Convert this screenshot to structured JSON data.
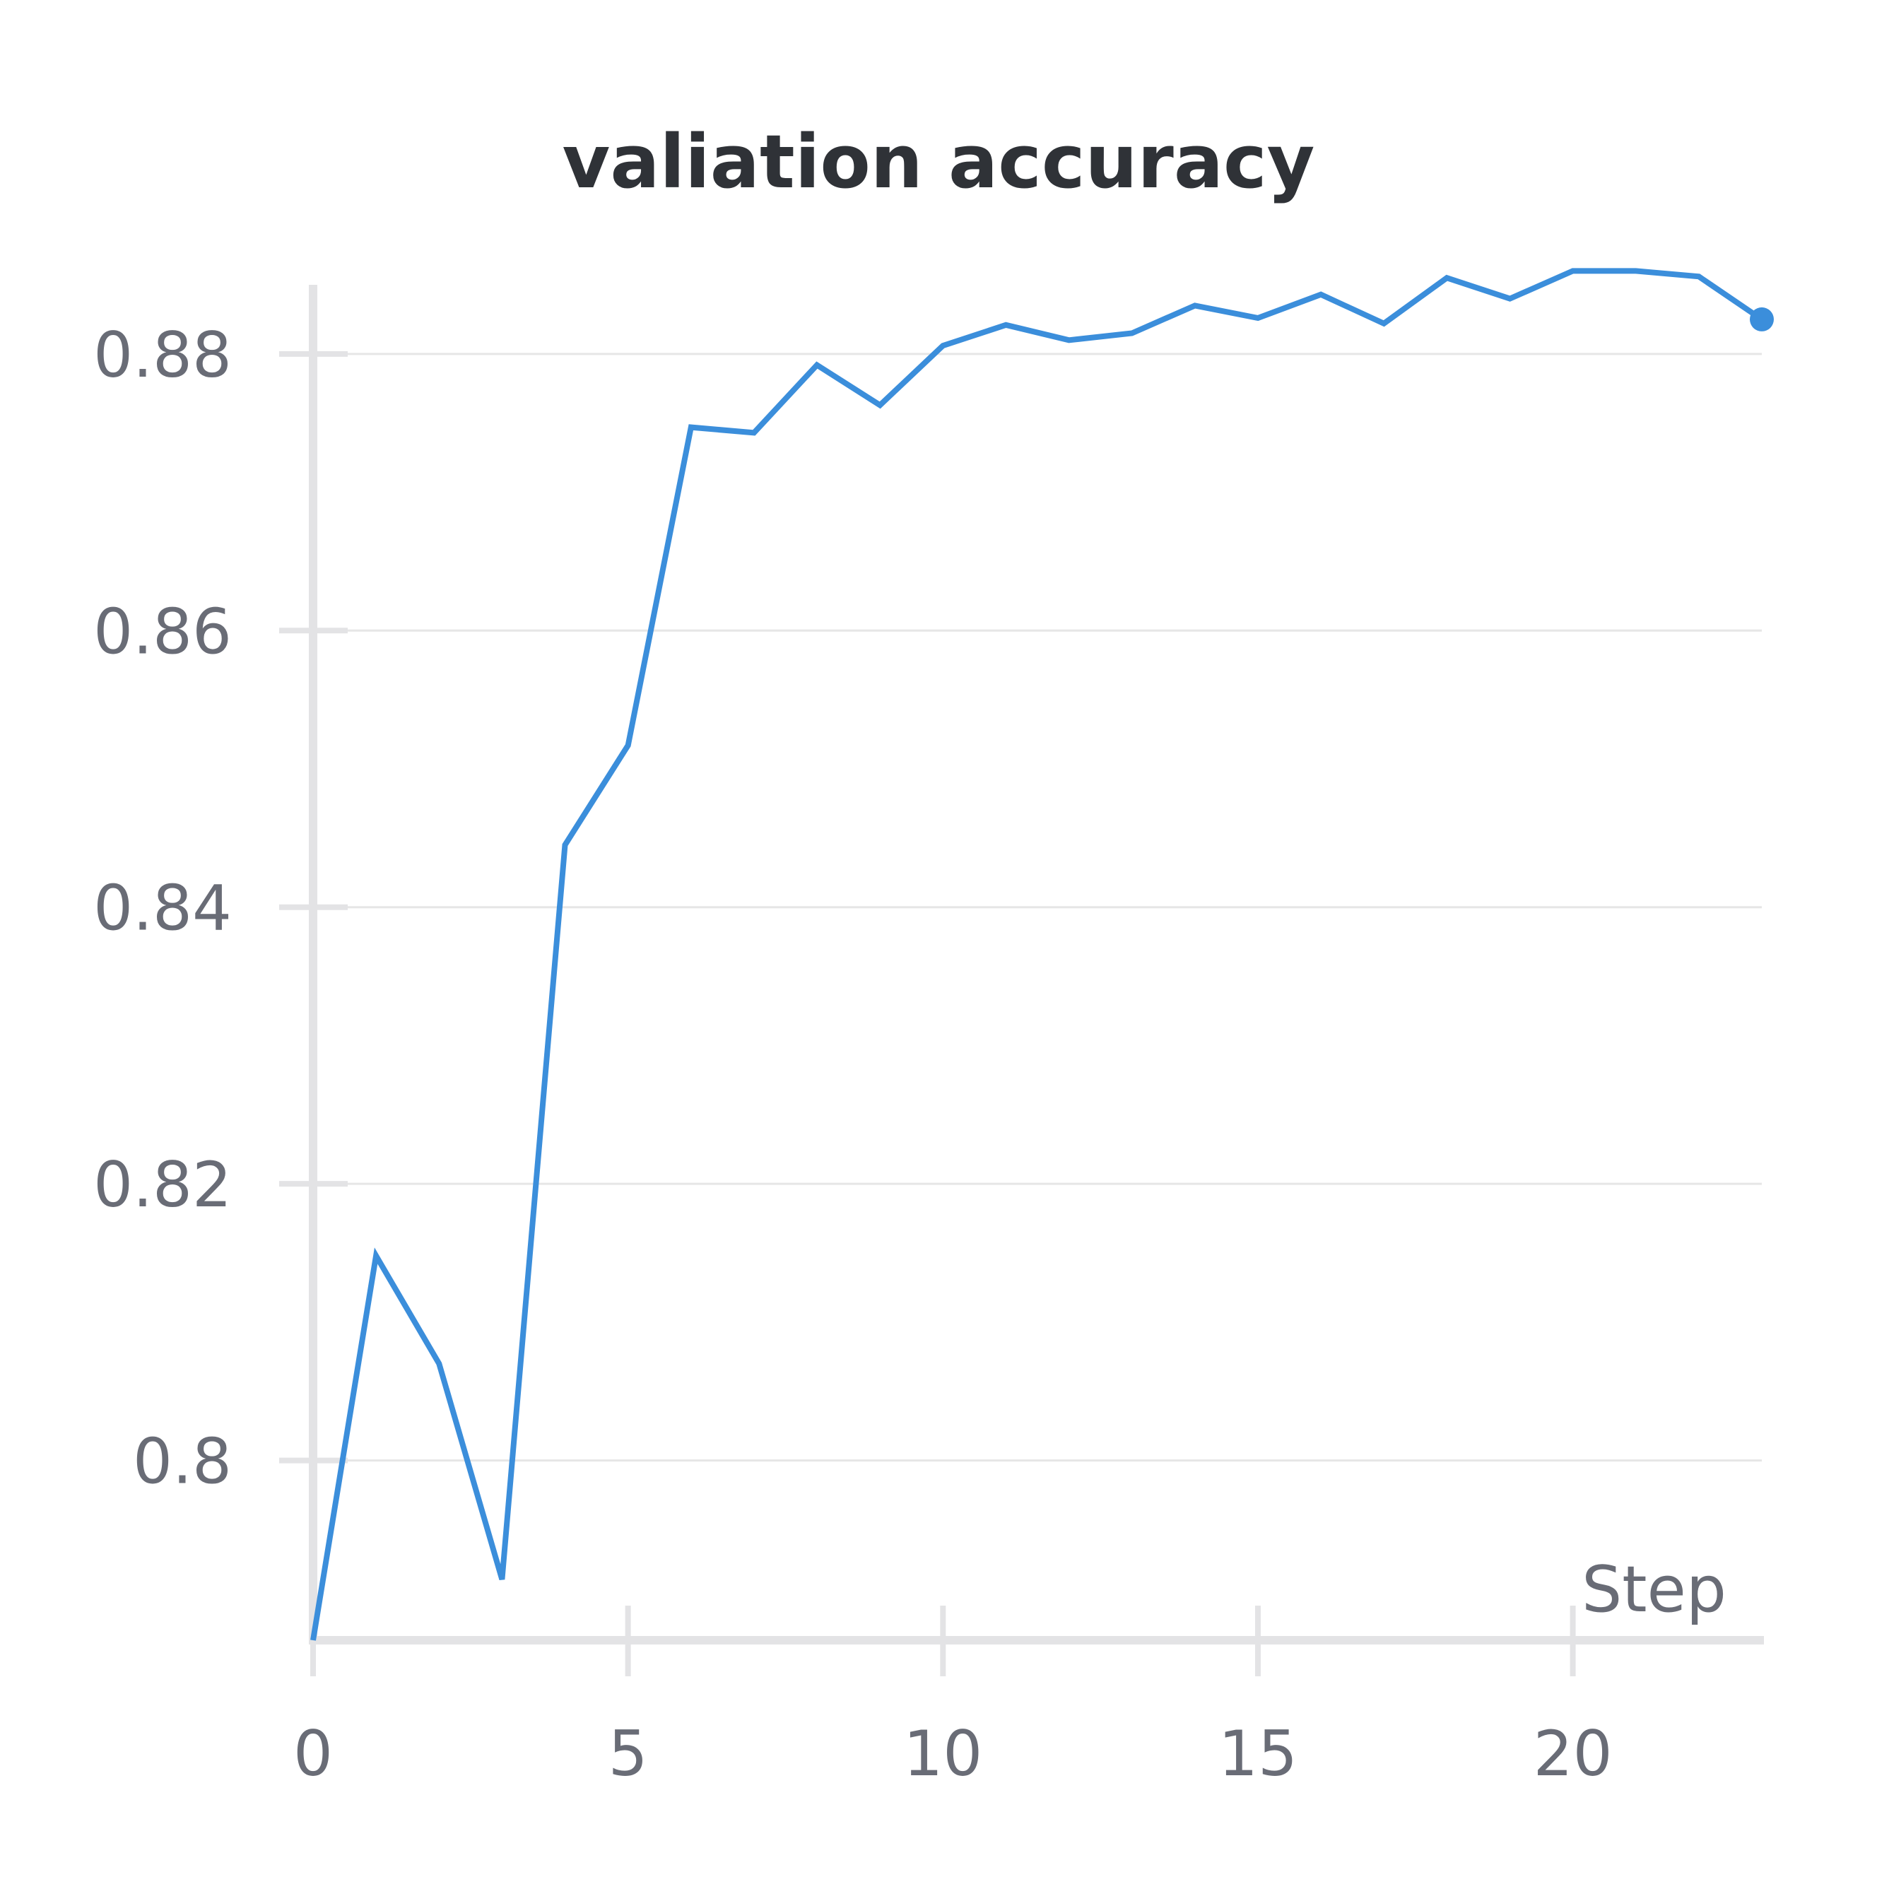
{
  "chart_data": {
    "type": "line",
    "title": "valiation accuracy",
    "xlabel": "Step",
    "ylabel": "",
    "xlim": [
      0,
      23
    ],
    "ylim": [
      0.787,
      0.885
    ],
    "x_ticks": [
      0,
      5,
      10,
      15,
      20
    ],
    "y_ticks": [
      0.8,
      0.82,
      0.84,
      0.86,
      0.88
    ],
    "y_tick_labels": [
      "0.8",
      "0.82",
      "0.84",
      "0.86",
      "0.88"
    ],
    "grid": true,
    "legend": "none",
    "colors": {
      "series": "#3b8edb",
      "grid": "#e6e6e6",
      "axis": "#e3e3e5"
    },
    "series": [
      {
        "x": [
          0,
          1,
          2,
          3,
          4,
          5,
          6,
          7,
          8,
          9,
          10,
          11,
          12,
          13,
          14,
          15,
          16,
          17,
          18,
          19,
          20,
          21,
          22,
          23
        ],
        "values": [
          0.787,
          0.8148,
          0.807,
          0.7914,
          0.8445,
          0.8517,
          0.8747,
          0.8743,
          0.8792,
          0.8763,
          0.8806,
          0.8821,
          0.881,
          0.8815,
          0.8835,
          0.8826,
          0.8843,
          0.8822,
          0.8855,
          0.884,
          0.886,
          0.886,
          0.8856,
          0.8825
        ]
      }
    ]
  }
}
